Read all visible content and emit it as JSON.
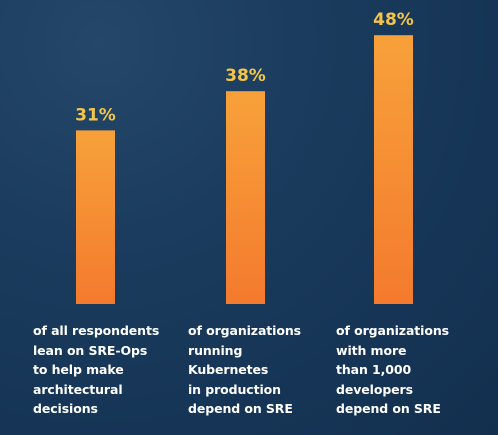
{
  "chart_data": {
    "type": "bar",
    "values": [
      31,
      38,
      48
    ],
    "value_labels": [
      "31%",
      "38%",
      "48%"
    ],
    "ylim": [
      0,
      50
    ],
    "grid": false,
    "legend": "none",
    "captions": [
      [
        "of all respondents",
        "lean on SRE-Ops",
        "to help make",
        "architectural",
        "decisions"
      ],
      [
        "of organizations",
        "running",
        "Kubernetes",
        "in production",
        "depend on SRE"
      ],
      [
        "of organizations",
        "with more",
        "than 1,000",
        "developers",
        "depend on SRE"
      ]
    ]
  },
  "colors": {
    "background": "#1b3c5e",
    "bar_top": "#f7a13a",
    "bar_bottom": "#f47a2e",
    "value_label": "#f5c54a",
    "caption": "#ffffff"
  }
}
